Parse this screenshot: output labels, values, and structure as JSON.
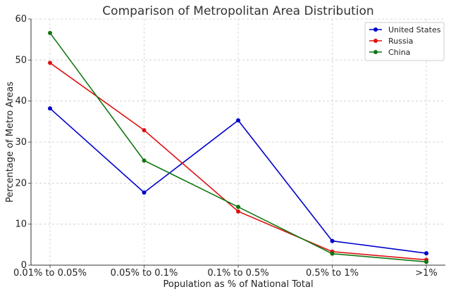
{
  "chart_data": {
    "type": "line",
    "title": "Comparison of Metropolitan Area Distribution",
    "xlabel": "Population as % of National Total",
    "ylabel": "Percentage of Metro Areas",
    "categories": [
      "0.01% to 0.05%",
      "0.05% to 0.1%",
      "0.1% to 0.5%",
      "0.5% to 1%",
      ">1%"
    ],
    "ylim": [
      0,
      60
    ],
    "yticks": [
      0,
      10,
      20,
      30,
      40,
      50,
      60
    ],
    "grid": true,
    "legend_position": "top-right",
    "series": [
      {
        "name": "United States",
        "color": "#0000cc",
        "values": [
          38.2,
          17.7,
          35.3,
          5.9,
          2.9
        ]
      },
      {
        "name": "Russia",
        "color": "#dd1111",
        "values": [
          49.3,
          32.9,
          13.1,
          3.3,
          1.3
        ]
      },
      {
        "name": "China",
        "color": "#117711",
        "values": [
          56.6,
          25.5,
          14.2,
          2.8,
          0.8
        ]
      }
    ]
  }
}
